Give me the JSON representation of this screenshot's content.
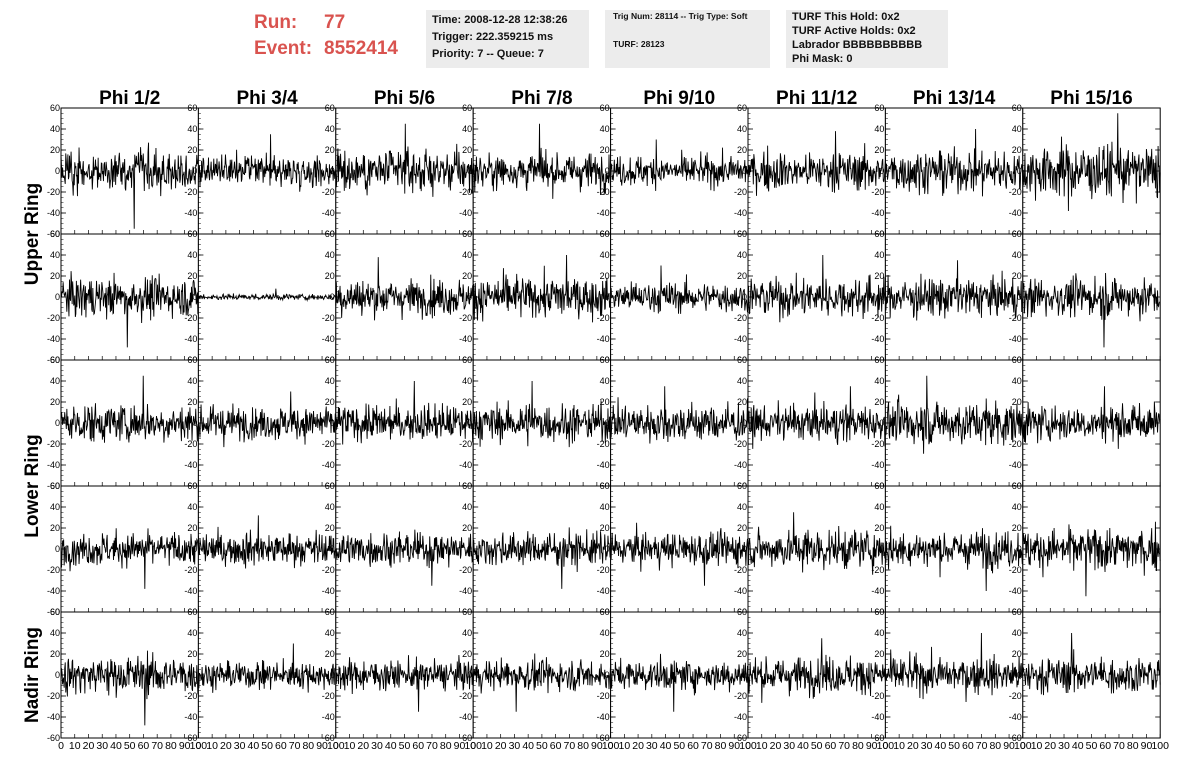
{
  "header": {
    "run_label": "Run:",
    "run_value": "77",
    "event_label": "Event:",
    "event_value": "8552414",
    "accent_color": "#d9534f"
  },
  "info_box_1": {
    "time": "Time: 2008-12-28 12:38:26",
    "trigger": "Trigger: 222.359215 ms",
    "priority": "Priority: 7 -- Queue: 7"
  },
  "info_box_2": {
    "trig": "Trig Num: 28114 -- Trig Type: Soft",
    "turf": "TURF: 28123"
  },
  "info_box_3": {
    "hold": "TURF This Hold: 0x2",
    "active": "TURF Active Holds: 0x2",
    "labrador": "Labrador BBBBBBBBBB",
    "phimask": "Phi Mask: 0"
  },
  "chart_data": {
    "type": "line",
    "layout": "grid of waveform panels (5 rows x 8 columns)",
    "columns": [
      "Phi 1/2",
      "Phi 3/4",
      "Phi 5/6",
      "Phi 7/8",
      "Phi 9/10",
      "Phi 11/12",
      "Phi 13/14",
      "Phi 15/16"
    ],
    "row_groups": [
      "Upper Ring",
      "Lower Ring",
      "Nadir Ring"
    ],
    "rows": 5,
    "xlim": [
      0,
      100
    ],
    "ylim": [
      -60,
      60
    ],
    "x_ticks": [
      0,
      10,
      20,
      30,
      40,
      50,
      60,
      70,
      80,
      90,
      100
    ],
    "y_ticks": [
      -60,
      -40,
      -20,
      0,
      20,
      40,
      60
    ],
    "samples_per_trace": 260,
    "line_color": "#000000",
    "grid": false,
    "panel_amplitudes": [
      [
        13,
        10,
        14,
        12,
        10,
        13,
        14,
        18
      ],
      [
        13,
        2,
        12,
        14,
        10,
        13,
        13,
        13
      ],
      [
        13,
        11,
        12,
        12,
        13,
        12,
        15,
        12
      ],
      [
        11,
        11,
        11,
        11,
        11,
        13,
        12,
        14
      ],
      [
        13,
        9,
        10,
        10,
        10,
        12,
        12,
        12
      ]
    ],
    "panel_peaks": [
      [
        -55,
        35,
        45,
        45,
        30,
        38,
        40,
        55
      ],
      [
        -48,
        8,
        38,
        40,
        30,
        40,
        35,
        -48
      ],
      [
        45,
        30,
        40,
        40,
        35,
        35,
        45,
        35
      ],
      [
        -38,
        32,
        -35,
        -38,
        -35,
        35,
        -40,
        -45
      ],
      [
        -48,
        30,
        -35,
        -35,
        -35,
        35,
        40,
        40
      ]
    ]
  }
}
